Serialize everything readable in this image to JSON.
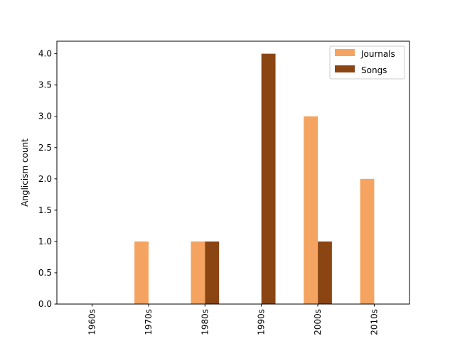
{
  "chart_data": {
    "type": "bar",
    "title": "",
    "xlabel": "",
    "ylabel": "Anglicism count",
    "categories": [
      "1960s",
      "1970s",
      "1980s",
      "1990s",
      "2000s",
      "2010s"
    ],
    "series": [
      {
        "name": "Journals",
        "color": "#f4a460",
        "values": [
          0,
          1,
          1,
          0,
          3,
          2
        ]
      },
      {
        "name": "Songs",
        "color": "#8b4513",
        "values": [
          0,
          0,
          1,
          4,
          1,
          0
        ]
      }
    ],
    "ylim": [
      0,
      4.2
    ],
    "yticks": [
      "0.0",
      "0.5",
      "1.0",
      "1.5",
      "2.0",
      "2.5",
      "3.0",
      "3.5",
      "4.0"
    ],
    "legend_position": "top-right",
    "grid": false
  }
}
